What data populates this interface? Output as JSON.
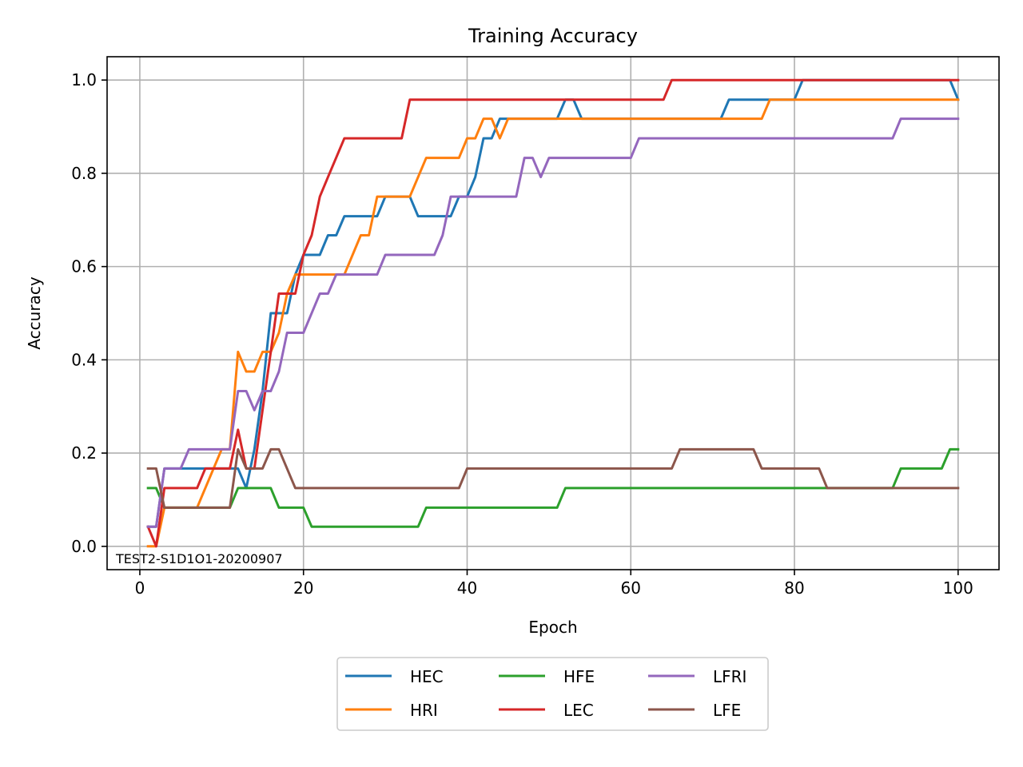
{
  "chart_data": {
    "type": "line",
    "title": "Training Accuracy",
    "xlabel": "Epoch",
    "ylabel": "Accuracy",
    "xlim": [
      -4,
      105
    ],
    "ylim": [
      -0.05,
      1.05
    ],
    "xticks": [
      0,
      20,
      40,
      60,
      80,
      100
    ],
    "yticks": [
      0.0,
      0.2,
      0.4,
      0.6,
      0.8,
      1.0
    ],
    "grid": true,
    "legend_position": "below",
    "annotation": "TEST2-S1D1O1-20200907",
    "series": [
      {
        "name": "HEC",
        "color": "#1f77b4",
        "points": [
          [
            1,
            0.042
          ],
          [
            2,
            0.042
          ],
          [
            3,
            0.167
          ],
          [
            11,
            0.167
          ],
          [
            12,
            0.167
          ],
          [
            13,
            0.125
          ],
          [
            14,
            0.208
          ],
          [
            15,
            0.333
          ],
          [
            16,
            0.5
          ],
          [
            18,
            0.5
          ],
          [
            19,
            0.583
          ],
          [
            20,
            0.625
          ],
          [
            22,
            0.625
          ],
          [
            23,
            0.667
          ],
          [
            24,
            0.667
          ],
          [
            25,
            0.708
          ],
          [
            29,
            0.708
          ],
          [
            30,
            0.75
          ],
          [
            33,
            0.75
          ],
          [
            34,
            0.708
          ],
          [
            38,
            0.708
          ],
          [
            39,
            0.75
          ],
          [
            40,
            0.75
          ],
          [
            41,
            0.792
          ],
          [
            42,
            0.875
          ],
          [
            43,
            0.875
          ],
          [
            44,
            0.917
          ],
          [
            51,
            0.917
          ],
          [
            52,
            0.958
          ],
          [
            53,
            0.958
          ],
          [
            54,
            0.917
          ],
          [
            71,
            0.917
          ],
          [
            72,
            0.958
          ],
          [
            80,
            0.958
          ],
          [
            81,
            1.0
          ],
          [
            99,
            1.0
          ],
          [
            100,
            0.958
          ]
        ]
      },
      {
        "name": "HRI",
        "color": "#ff7f0e",
        "points": [
          [
            1,
            0.0
          ],
          [
            2,
            0.0
          ],
          [
            3,
            0.083
          ],
          [
            7,
            0.083
          ],
          [
            8,
            0.125
          ],
          [
            10,
            0.208
          ],
          [
            11,
            0.208
          ],
          [
            12,
            0.417
          ],
          [
            13,
            0.375
          ],
          [
            14,
            0.375
          ],
          [
            15,
            0.417
          ],
          [
            16,
            0.417
          ],
          [
            17,
            0.458
          ],
          [
            18,
            0.542
          ],
          [
            19,
            0.583
          ],
          [
            25,
            0.583
          ],
          [
            27,
            0.667
          ],
          [
            28,
            0.667
          ],
          [
            29,
            0.75
          ],
          [
            33,
            0.75
          ],
          [
            35,
            0.833
          ],
          [
            39,
            0.833
          ],
          [
            40,
            0.875
          ],
          [
            41,
            0.875
          ],
          [
            42,
            0.917
          ],
          [
            43,
            0.917
          ],
          [
            44,
            0.875
          ],
          [
            45,
            0.917
          ],
          [
            76,
            0.917
          ],
          [
            77,
            0.958
          ],
          [
            100,
            0.958
          ]
        ]
      },
      {
        "name": "HFE",
        "color": "#2ca02c",
        "points": [
          [
            1,
            0.125
          ],
          [
            2,
            0.125
          ],
          [
            3,
            0.083
          ],
          [
            11,
            0.083
          ],
          [
            12,
            0.125
          ],
          [
            16,
            0.125
          ],
          [
            17,
            0.083
          ],
          [
            20,
            0.083
          ],
          [
            21,
            0.042
          ],
          [
            34,
            0.042
          ],
          [
            35,
            0.083
          ],
          [
            51,
            0.083
          ],
          [
            52,
            0.125
          ],
          [
            92,
            0.125
          ],
          [
            93,
            0.167
          ],
          [
            98,
            0.167
          ],
          [
            99,
            0.208
          ],
          [
            100,
            0.208
          ]
        ]
      },
      {
        "name": "LEC",
        "color": "#d62728",
        "points": [
          [
            1,
            0.042
          ],
          [
            2,
            0.0
          ],
          [
            3,
            0.125
          ],
          [
            7,
            0.125
          ],
          [
            8,
            0.167
          ],
          [
            11,
            0.167
          ],
          [
            12,
            0.25
          ],
          [
            13,
            0.167
          ],
          [
            14,
            0.167
          ],
          [
            15,
            0.292
          ],
          [
            16,
            0.417
          ],
          [
            17,
            0.542
          ],
          [
            19,
            0.542
          ],
          [
            20,
            0.625
          ],
          [
            21,
            0.667
          ],
          [
            22,
            0.75
          ],
          [
            23,
            0.792
          ],
          [
            25,
            0.875
          ],
          [
            32,
            0.875
          ],
          [
            33,
            0.958
          ],
          [
            64,
            0.958
          ],
          [
            65,
            1.0
          ],
          [
            100,
            1.0
          ]
        ]
      },
      {
        "name": "LFRI",
        "color": "#9467bd",
        "points": [
          [
            1,
            0.042
          ],
          [
            2,
            0.042
          ],
          [
            3,
            0.167
          ],
          [
            5,
            0.167
          ],
          [
            6,
            0.208
          ],
          [
            11,
            0.208
          ],
          [
            12,
            0.333
          ],
          [
            13,
            0.333
          ],
          [
            14,
            0.292
          ],
          [
            15,
            0.333
          ],
          [
            16,
            0.333
          ],
          [
            17,
            0.375
          ],
          [
            18,
            0.458
          ],
          [
            20,
            0.458
          ],
          [
            22,
            0.542
          ],
          [
            23,
            0.542
          ],
          [
            24,
            0.583
          ],
          [
            29,
            0.583
          ],
          [
            30,
            0.625
          ],
          [
            36,
            0.625
          ],
          [
            37,
            0.667
          ],
          [
            38,
            0.75
          ],
          [
            46,
            0.75
          ],
          [
            47,
            0.833
          ],
          [
            48,
            0.833
          ],
          [
            49,
            0.792
          ],
          [
            50,
            0.833
          ],
          [
            60,
            0.833
          ],
          [
            61,
            0.875
          ],
          [
            92,
            0.875
          ],
          [
            93,
            0.917
          ],
          [
            100,
            0.917
          ]
        ]
      },
      {
        "name": "LFE",
        "color": "#8c564b",
        "points": [
          [
            1,
            0.167
          ],
          [
            2,
            0.167
          ],
          [
            3,
            0.083
          ],
          [
            11,
            0.083
          ],
          [
            12,
            0.208
          ],
          [
            13,
            0.167
          ],
          [
            15,
            0.167
          ],
          [
            16,
            0.208
          ],
          [
            17,
            0.208
          ],
          [
            19,
            0.125
          ],
          [
            39,
            0.125
          ],
          [
            40,
            0.167
          ],
          [
            65,
            0.167
          ],
          [
            66,
            0.208
          ],
          [
            75,
            0.208
          ],
          [
            76,
            0.167
          ],
          [
            83,
            0.167
          ],
          [
            84,
            0.125
          ],
          [
            100,
            0.125
          ]
        ]
      }
    ]
  }
}
